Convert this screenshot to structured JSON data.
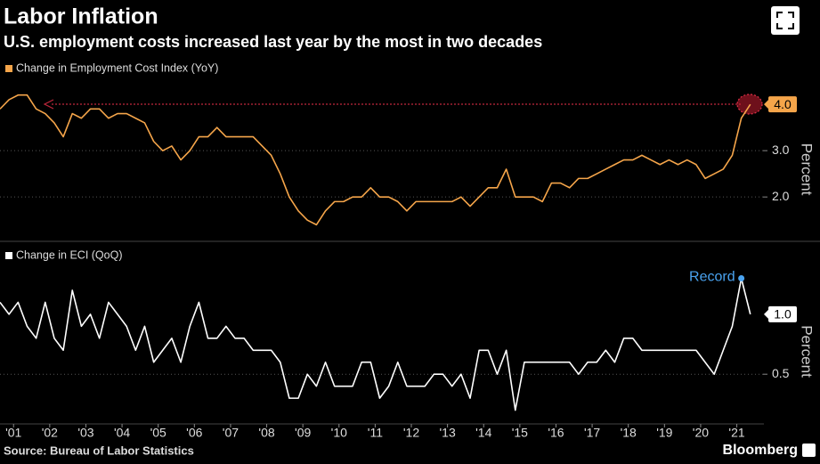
{
  "header": {
    "title": "Labor Inflation",
    "subtitle": "U.S. employment costs increased last year by the most in two decades"
  },
  "footer": {
    "source": "Source: Bureau of Labor Statistics",
    "brand": "Bloomberg"
  },
  "chart_data": [
    {
      "type": "line",
      "y_label": "Percent",
      "xlim": [
        2001,
        2022.1
      ],
      "ylim": [
        1.1,
        4.56
      ],
      "yticks": [
        {
          "value": 2,
          "label": "2.0"
        },
        {
          "value": 3,
          "label": "3.0"
        }
      ],
      "grid": true,
      "series": [
        {
          "name": "Change in Employment Cost Index (YoY)",
          "color": "#f5a54a",
          "x": [
            2001,
            2001.25,
            2001.5,
            2001.75,
            2002,
            2002.25,
            2002.5,
            2002.75,
            2003,
            2003.25,
            2003.5,
            2003.75,
            2004,
            2004.25,
            2004.5,
            2004.75,
            2005,
            2005.25,
            2005.5,
            2005.75,
            2006,
            2006.25,
            2006.5,
            2006.75,
            2007,
            2007.25,
            2007.5,
            2007.75,
            2008,
            2008.25,
            2008.5,
            2008.75,
            2009,
            2009.25,
            2009.5,
            2009.75,
            2010,
            2010.25,
            2010.5,
            2010.75,
            2011,
            2011.25,
            2011.5,
            2011.75,
            2012,
            2012.25,
            2012.5,
            2012.75,
            2013,
            2013.25,
            2013.5,
            2013.75,
            2014,
            2014.25,
            2014.5,
            2014.75,
            2015,
            2015.25,
            2015.5,
            2015.75,
            2016,
            2016.25,
            2016.5,
            2016.75,
            2017,
            2017.25,
            2017.5,
            2017.75,
            2018,
            2018.25,
            2018.5,
            2018.75,
            2019,
            2019.25,
            2019.5,
            2019.75,
            2020,
            2020.25,
            2020.5,
            2020.75,
            2021,
            2021.25,
            2021.5,
            2021.75
          ],
          "values": [
            3.9,
            4.1,
            4.2,
            4.2,
            3.9,
            3.8,
            3.6,
            3.3,
            3.8,
            3.7,
            3.9,
            3.9,
            3.7,
            3.8,
            3.8,
            3.7,
            3.6,
            3.2,
            3.0,
            3.1,
            2.8,
            3.0,
            3.3,
            3.3,
            3.5,
            3.3,
            3.3,
            3.3,
            3.3,
            3.1,
            2.9,
            2.5,
            2.0,
            1.7,
            1.5,
            1.4,
            1.7,
            1.9,
            1.9,
            2.0,
            2.0,
            2.2,
            2.0,
            2.0,
            1.9,
            1.7,
            1.9,
            1.9,
            1.9,
            1.9,
            1.9,
            2.0,
            1.8,
            2.0,
            2.2,
            2.2,
            2.6,
            2.0,
            2.0,
            2.0,
            1.9,
            2.3,
            2.3,
            2.2,
            2.4,
            2.4,
            2.5,
            2.6,
            2.7,
            2.8,
            2.8,
            2.9,
            2.8,
            2.7,
            2.8,
            2.7,
            2.8,
            2.7,
            2.4,
            2.5,
            2.6,
            2.9,
            3.7,
            4.0
          ],
          "value_labels": [
            null,
            null,
            null,
            null,
            null,
            null,
            null,
            null,
            null,
            null,
            null,
            null,
            null,
            null,
            null,
            null,
            null,
            null,
            null,
            null,
            null,
            null,
            null,
            null,
            null,
            null,
            null,
            null,
            null,
            null,
            null,
            null,
            null,
            null,
            null,
            null,
            null,
            null,
            null,
            null,
            null,
            null,
            null,
            null,
            null,
            null,
            null,
            null,
            null,
            null,
            null,
            null,
            null,
            null,
            null,
            null,
            null,
            null,
            null,
            null,
            null,
            null,
            null,
            null,
            null,
            null,
            null,
            null,
            null,
            null,
            null,
            null,
            null,
            null,
            null,
            null,
            null,
            null,
            null,
            null,
            null,
            null,
            null,
            "4.0"
          ]
        }
      ]
    },
    {
      "type": "line",
      "y_label": "Percent",
      "xlim": [
        2001,
        2022.1
      ],
      "ylim": [
        0.13,
        1.43
      ],
      "yticks": [
        0.5
      ],
      "xticks": [
        {
          "value": 2001.375,
          "label": "'01"
        },
        {
          "value": 2002.375,
          "label": "'02"
        },
        {
          "value": 2003.375,
          "label": "'03"
        },
        {
          "value": 2004.375,
          "label": "'04"
        },
        {
          "value": 2005.375,
          "label": "'05"
        },
        {
          "value": 2006.375,
          "label": "'06"
        },
        {
          "value": 2007.375,
          "label": "'07"
        },
        {
          "value": 2008.375,
          "label": "'08"
        },
        {
          "value": 2009.375,
          "label": "'09"
        },
        {
          "value": 2010.375,
          "label": "'10"
        },
        {
          "value": 2011.375,
          "label": "'11"
        },
        {
          "value": 2012.375,
          "label": "'12"
        },
        {
          "value": 2013.375,
          "label": "'13"
        },
        {
          "value": 2014.375,
          "label": "'14"
        },
        {
          "value": 2015.375,
          "label": "'15"
        },
        {
          "value": 2016.375,
          "label": "'16"
        },
        {
          "value": 2017.375,
          "label": "'17"
        },
        {
          "value": 2018.375,
          "label": "'18"
        },
        {
          "value": 2019.375,
          "label": "'19"
        },
        {
          "value": 2020.375,
          "label": "'20"
        },
        {
          "value": 2021.375,
          "label": "'21"
        }
      ],
      "grid": true,
      "annotation": {
        "text": "Record",
        "x": 2021.5,
        "y": 1.3,
        "color": "#4aa3f0"
      },
      "series": [
        {
          "name": "Change in ECI (QoQ)",
          "color": "#ffffff",
          "x": [
            2001,
            2001.25,
            2001.5,
            2001.75,
            2002,
            2002.25,
            2002.5,
            2002.75,
            2003,
            2003.25,
            2003.5,
            2003.75,
            2004,
            2004.25,
            2004.5,
            2004.75,
            2005,
            2005.25,
            2005.5,
            2005.75,
            2006,
            2006.25,
            2006.5,
            2006.75,
            2007,
            2007.25,
            2007.5,
            2007.75,
            2008,
            2008.25,
            2008.5,
            2008.75,
            2009,
            2009.25,
            2009.5,
            2009.75,
            2010,
            2010.25,
            2010.5,
            2010.75,
            2011,
            2011.25,
            2011.5,
            2011.75,
            2012,
            2012.25,
            2012.5,
            2012.75,
            2013,
            2013.25,
            2013.5,
            2013.75,
            2014,
            2014.25,
            2014.5,
            2014.75,
            2015,
            2015.25,
            2015.5,
            2015.75,
            2016,
            2016.25,
            2016.5,
            2016.75,
            2017,
            2017.25,
            2017.5,
            2017.75,
            2018,
            2018.25,
            2018.5,
            2018.75,
            2019,
            2019.25,
            2019.5,
            2019.75,
            2020,
            2020.25,
            2020.5,
            2020.75,
            2021,
            2021.25,
            2021.5,
            2021.75
          ],
          "values": [
            1.1,
            1.0,
            1.1,
            0.9,
            0.8,
            1.1,
            0.8,
            0.7,
            1.2,
            0.9,
            1.0,
            0.8,
            1.1,
            1.0,
            0.9,
            0.7,
            0.9,
            0.6,
            0.7,
            0.8,
            0.6,
            0.9,
            1.1,
            0.8,
            0.8,
            0.9,
            0.8,
            0.8,
            0.7,
            0.7,
            0.7,
            0.6,
            0.3,
            0.3,
            0.5,
            0.4,
            0.6,
            0.4,
            0.4,
            0.4,
            0.6,
            0.6,
            0.3,
            0.4,
            0.6,
            0.4,
            0.4,
            0.4,
            0.5,
            0.5,
            0.4,
            0.5,
            0.3,
            0.7,
            0.7,
            0.5,
            0.7,
            0.2,
            0.6,
            0.6,
            0.6,
            0.6,
            0.6,
            0.6,
            0.5,
            0.6,
            0.6,
            0.7,
            0.6,
            0.8,
            0.8,
            0.7,
            0.7,
            0.7,
            0.7,
            0.7,
            0.7,
            0.7,
            0.6,
            0.5,
            0.7,
            0.9,
            1.3,
            1.0
          ],
          "value_labels": [
            null,
            null,
            null,
            null,
            null,
            null,
            null,
            null,
            null,
            null,
            null,
            null,
            null,
            null,
            null,
            null,
            null,
            null,
            null,
            null,
            null,
            null,
            null,
            null,
            null,
            null,
            null,
            null,
            null,
            null,
            null,
            null,
            null,
            null,
            null,
            null,
            null,
            null,
            null,
            null,
            null,
            null,
            null,
            null,
            null,
            null,
            null,
            null,
            null,
            null,
            null,
            null,
            null,
            null,
            null,
            null,
            null,
            null,
            null,
            null,
            null,
            null,
            null,
            null,
            null,
            null,
            null,
            null,
            null,
            null,
            null,
            null,
            null,
            null,
            null,
            null,
            null,
            null,
            null,
            null,
            null,
            null,
            null,
            "1.0"
          ]
        }
      ]
    }
  ]
}
